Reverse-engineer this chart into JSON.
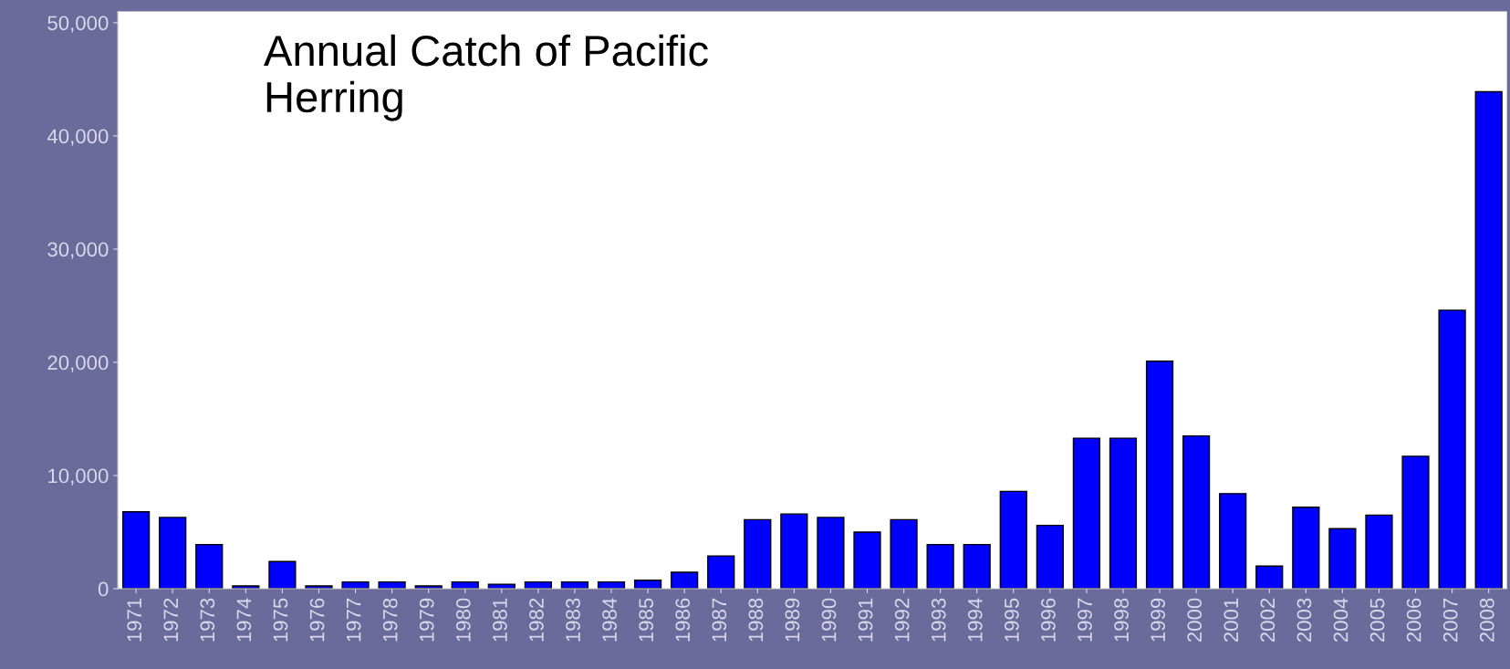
{
  "chart_data": {
    "type": "bar",
    "title": "Annual Catch of Pacific\nHerring",
    "categories": [
      "1971",
      "1972",
      "1973",
      "1974",
      "1975",
      "1976",
      "1977",
      "1978",
      "1979",
      "1980",
      "1981",
      "1982",
      "1983",
      "1984",
      "1985",
      "1986",
      "1987",
      "1988",
      "1989",
      "1990",
      "1991",
      "1992",
      "1993",
      "1994",
      "1995",
      "1996",
      "1997",
      "1998",
      "1999",
      "2000",
      "2001",
      "2002",
      "2003",
      "2004",
      "2005",
      "2006",
      "2007",
      "2008"
    ],
    "values": [
      6800,
      6300,
      3900,
      250,
      2400,
      250,
      600,
      600,
      250,
      600,
      400,
      600,
      600,
      600,
      750,
      1450,
      2900,
      6100,
      6600,
      6300,
      5000,
      6100,
      3900,
      3900,
      8600,
      5600,
      13300,
      13300,
      20100,
      13500,
      8400,
      2000,
      7200,
      5300,
      6500,
      11700,
      24600,
      43900
    ],
    "color": "#0000ff",
    "ylim": [
      0,
      51000
    ],
    "yticks": [
      {
        "value": 0,
        "label": "0"
      },
      {
        "value": 10000,
        "label": "10,000"
      },
      {
        "value": 20000,
        "label": "20,000"
      },
      {
        "value": 30000,
        "label": "30,000"
      },
      {
        "value": 40000,
        "label": "40,000"
      },
      {
        "value": 50000,
        "label": "50,000"
      }
    ],
    "grid": false
  }
}
